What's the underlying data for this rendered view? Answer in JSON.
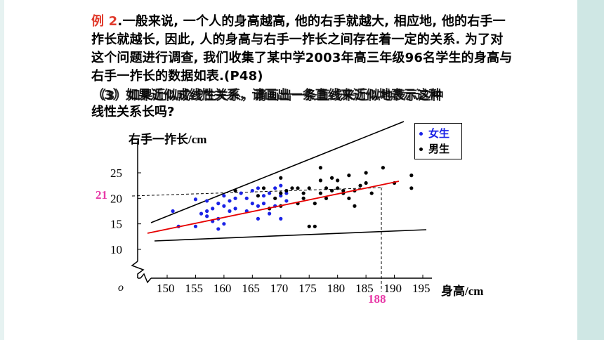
{
  "problem": {
    "label": "例 2",
    "text": ".一般来说, 一个人的身高越高, 他的右手就越大, 相应地, 他的右手一拃长就越长, 因此, 人的身高与右手一拃长之间存在着一定的关系. 为了对这个问题进行调查, 我们收集了某中学2003年高三年级96名学生的身高与右手一拃长的数据如表.(P48)"
  },
  "question": {
    "line1a": "（3）如果近似成线性关系，请画出一条直线来近似地表示这种",
    "line1b": "（3）如果近似成线性关系，请画出一条直线来近似地表示这种",
    "line2": "线性关系长吗?"
  },
  "chart_data": {
    "type": "scatter",
    "ylabel": "右手一拃长/cm",
    "xlabel": "身高/cm",
    "origin_label": "o",
    "x_ticks": [
      "150",
      "155",
      "160",
      "165",
      "170",
      "175",
      "180",
      "185",
      "190",
      "195"
    ],
    "y_ticks": [
      "10",
      "15",
      "20",
      "25"
    ],
    "xlim": [
      147,
      197
    ],
    "ylim": [
      10,
      27
    ],
    "reference": {
      "x_label": "188",
      "y_label": "21",
      "x": 188,
      "y": 21
    },
    "colors": {
      "female": "#1a22e6",
      "male": "#000000",
      "fit": "#e60000",
      "ref": "#e83aa8"
    },
    "legend": [
      {
        "name": "女生",
        "color": "#1a22e6"
      },
      {
        "name": "男生",
        "color": "#000000"
      }
    ],
    "series": [
      {
        "name": "女生",
        "points": [
          [
            151,
            17.5
          ],
          [
            152,
            14.5
          ],
          [
            155,
            14.5
          ],
          [
            155,
            19.8
          ],
          [
            156,
            17
          ],
          [
            157,
            17.5
          ],
          [
            157,
            16.5
          ],
          [
            157,
            19.5
          ],
          [
            158,
            18
          ],
          [
            158,
            15.5
          ],
          [
            159,
            16
          ],
          [
            159,
            14
          ],
          [
            159,
            19
          ],
          [
            160,
            18.5
          ],
          [
            160,
            15
          ],
          [
            160,
            20.5
          ],
          [
            161,
            17.5
          ],
          [
            161,
            19.5
          ],
          [
            162,
            18
          ],
          [
            162,
            20
          ],
          [
            163,
            21
          ],
          [
            164,
            20
          ],
          [
            164,
            17.5
          ],
          [
            165,
            19
          ],
          [
            165,
            21.5
          ],
          [
            166,
            18.5
          ],
          [
            166,
            16
          ],
          [
            166,
            22
          ],
          [
            167,
            20.5
          ],
          [
            167,
            19
          ],
          [
            168,
            21
          ],
          [
            168,
            17
          ],
          [
            169,
            22
          ],
          [
            169,
            18.5
          ],
          [
            170,
            20.5
          ],
          [
            170,
            22.5
          ],
          [
            170,
            16
          ],
          [
            171,
            21
          ],
          [
            171,
            19.5
          ]
        ]
      },
      {
        "name": "男生",
        "points": [
          [
            162,
            21.5
          ],
          [
            166,
            20.5
          ],
          [
            167,
            22
          ],
          [
            168,
            18
          ],
          [
            169,
            20
          ],
          [
            170,
            21
          ],
          [
            170,
            24
          ],
          [
            170,
            18.5
          ],
          [
            171,
            21.5
          ],
          [
            172,
            22
          ],
          [
            173,
            19
          ],
          [
            173,
            22
          ],
          [
            174,
            20
          ],
          [
            174,
            21
          ],
          [
            175,
            14.5
          ],
          [
            175,
            22
          ],
          [
            176,
            14.5
          ],
          [
            176,
            19
          ],
          [
            177,
            26
          ],
          [
            177,
            21
          ],
          [
            177,
            23.5
          ],
          [
            178,
            22
          ],
          [
            178,
            20
          ],
          [
            179,
            24
          ],
          [
            179,
            21.5
          ],
          [
            180,
            22
          ],
          [
            180,
            23.5
          ],
          [
            181,
            21
          ],
          [
            181,
            21.5
          ],
          [
            182,
            24.5
          ],
          [
            182,
            20
          ],
          [
            183,
            18.5
          ],
          [
            183,
            21.5
          ],
          [
            184,
            22.5
          ],
          [
            185,
            25
          ],
          [
            185,
            23
          ],
          [
            186,
            21
          ],
          [
            188,
            26
          ],
          [
            190,
            23
          ],
          [
            193,
            24.5
          ],
          [
            193,
            22
          ]
        ]
      }
    ],
    "fit_line": {
      "from": [
        147,
        13.6
      ],
      "to": [
        194,
        23.6
      ]
    },
    "upper_boundary": {
      "from": [
        147,
        15.5
      ],
      "to": [
        190,
        35.5
      ]
    },
    "lower_boundary": {
      "from": [
        148,
        11.4
      ],
      "to": [
        196,
        14.0
      ]
    }
  }
}
